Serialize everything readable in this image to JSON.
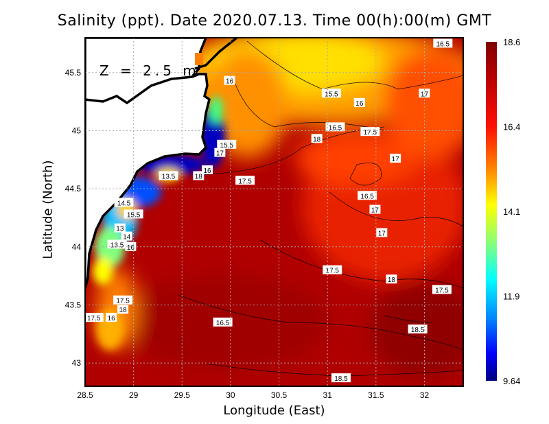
{
  "title": "Salinity (ppt). Date 2020.07.13. Time 00(h):00(m) GMT",
  "depth_label": "Z = 2.5 m",
  "chart_data": {
    "type": "heatmap",
    "title": "Salinity (ppt). Date 2020.07.13. Time 00(h):00(m) GMT",
    "xlabel": "Longitude (East)",
    "ylabel": "Latitude (North)",
    "xlim": [
      28.5,
      32.4
    ],
    "ylim": [
      42.8,
      45.8
    ],
    "xticks": [
      "28.5",
      "29",
      "29.5",
      "30",
      "30.5",
      "31",
      "31.5",
      "32"
    ],
    "xtick_values": [
      28.5,
      29,
      29.5,
      30,
      30.5,
      31,
      31.5,
      32
    ],
    "yticks": [
      "43",
      "43.5",
      "44",
      "44.5",
      "45",
      "45.5"
    ],
    "ytick_values": [
      43,
      43.5,
      44,
      44.5,
      45,
      45.5
    ],
    "grid": true,
    "colorbar": {
      "range": [
        9.64,
        18.6
      ],
      "labels": [
        "18.6",
        "16.4",
        "14.1",
        "11.9",
        "9.64"
      ],
      "colors": [
        "#800000",
        "#ff0000",
        "#ff8000",
        "#ffff00",
        "#80ff80",
        "#00ffff",
        "#0080ff",
        "#0000ff",
        "#000080"
      ]
    },
    "contour_labels": [
      {
        "lon": 32.19,
        "lat": 45.75,
        "text": "16.5"
      },
      {
        "lon": 29.99,
        "lat": 45.43,
        "text": "16"
      },
      {
        "lon": 31.04,
        "lat": 45.32,
        "text": "15.5"
      },
      {
        "lon": 31.33,
        "lat": 45.24,
        "text": "16"
      },
      {
        "lon": 32.0,
        "lat": 45.32,
        "text": "17"
      },
      {
        "lon": 31.08,
        "lat": 45.03,
        "text": "16.5"
      },
      {
        "lon": 31.44,
        "lat": 44.99,
        "text": "17.5"
      },
      {
        "lon": 30.89,
        "lat": 44.93,
        "text": "18"
      },
      {
        "lon": 31.7,
        "lat": 44.76,
        "text": "17"
      },
      {
        "lon": 29.96,
        "lat": 44.88,
        "text": "15.5"
      },
      {
        "lon": 29.89,
        "lat": 44.81,
        "text": "17"
      },
      {
        "lon": 30.15,
        "lat": 44.57,
        "text": "17.5"
      },
      {
        "lon": 29.67,
        "lat": 44.61,
        "text": "18"
      },
      {
        "lon": 29.36,
        "lat": 44.61,
        "text": "13.5"
      },
      {
        "lon": 29.76,
        "lat": 44.66,
        "text": "16"
      },
      {
        "lon": 31.41,
        "lat": 44.44,
        "text": "16.5"
      },
      {
        "lon": 31.49,
        "lat": 44.32,
        "text": "17"
      },
      {
        "lon": 31.56,
        "lat": 44.12,
        "text": "17"
      },
      {
        "lon": 28.9,
        "lat": 44.38,
        "text": "14.5"
      },
      {
        "lon": 29.0,
        "lat": 44.28,
        "text": "15.5"
      },
      {
        "lon": 28.86,
        "lat": 44.16,
        "text": "13"
      },
      {
        "lon": 28.93,
        "lat": 44.09,
        "text": "14"
      },
      {
        "lon": 28.83,
        "lat": 44.02,
        "text": "13.5"
      },
      {
        "lon": 28.97,
        "lat": 44.0,
        "text": "16"
      },
      {
        "lon": 31.05,
        "lat": 43.8,
        "text": "17.5"
      },
      {
        "lon": 31.66,
        "lat": 43.72,
        "text": "18"
      },
      {
        "lon": 32.18,
        "lat": 43.63,
        "text": "17.5"
      },
      {
        "lon": 28.89,
        "lat": 43.54,
        "text": "17.5"
      },
      {
        "lon": 28.89,
        "lat": 43.46,
        "text": "18"
      },
      {
        "lon": 28.59,
        "lat": 43.39,
        "text": "17.5"
      },
      {
        "lon": 28.77,
        "lat": 43.39,
        "text": "16"
      },
      {
        "lon": 29.92,
        "lat": 43.35,
        "text": "16.5"
      },
      {
        "lon": 31.93,
        "lat": 43.29,
        "text": "18.5"
      },
      {
        "lon": 31.14,
        "lat": 42.87,
        "text": "18.5"
      }
    ]
  }
}
